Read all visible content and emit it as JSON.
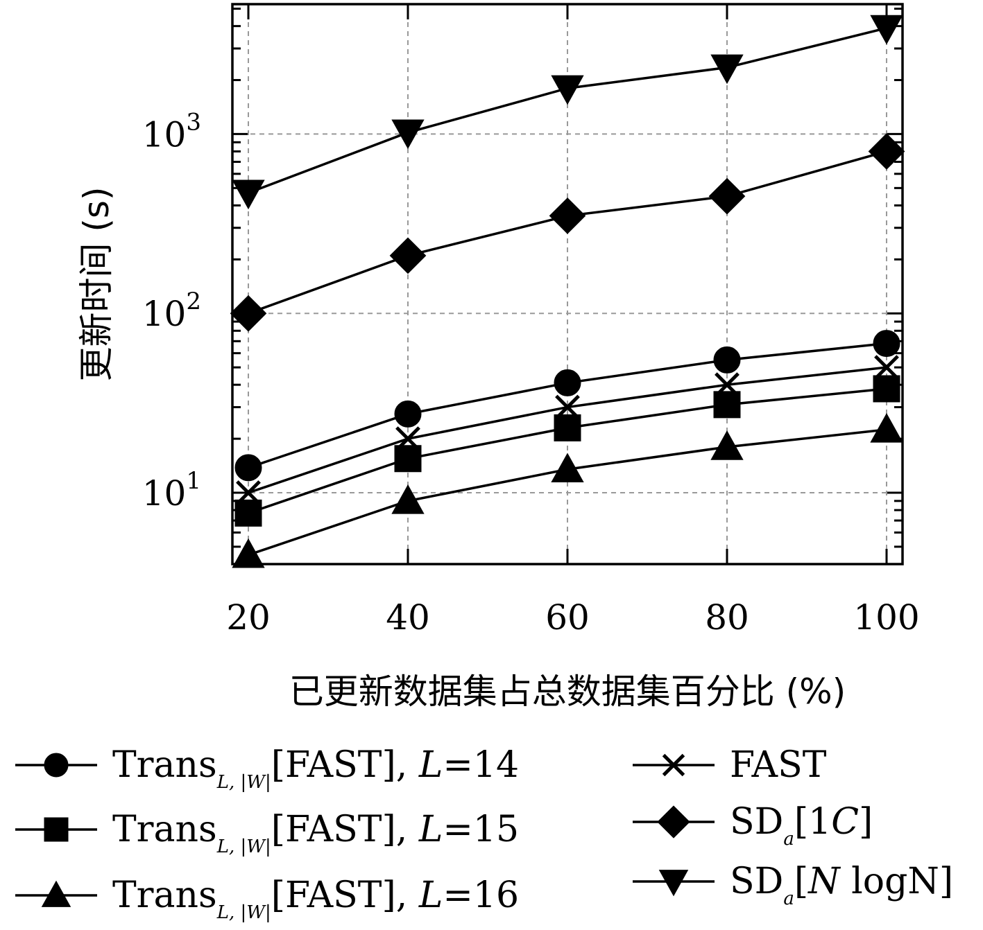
{
  "chart_data": {
    "type": "line",
    "title": "",
    "xlabel": "已更新数据集占总数据集百分比 (%)",
    "ylabel": "更新时间 (s)",
    "yscale": "log",
    "x": [
      20,
      40,
      60,
      80,
      100
    ],
    "xlim": [
      18,
      102
    ],
    "ylim": [
      4,
      5300
    ],
    "xticks": [
      "20",
      "40",
      "60",
      "80",
      "100"
    ],
    "yticks": [
      {
        "value": 10,
        "base": "10",
        "exp": "1"
      },
      {
        "value": 100,
        "base": "10",
        "exp": "2"
      },
      {
        "value": 1000,
        "base": "10",
        "exp": "3"
      }
    ],
    "grid": true,
    "legend_position": "below",
    "series": [
      {
        "key": "trans-l14",
        "marker": "circle",
        "label_main": "Trans",
        "label_sub": "L, |W|",
        "label_rest": "[FAST], ",
        "label_ital": "L",
        "label_tail": "=14",
        "values": [
          13.8,
          27.5,
          41,
          55,
          68
        ]
      },
      {
        "key": "trans-l15",
        "marker": "square",
        "label_main": "Trans",
        "label_sub": "L, |W|",
        "label_rest": "[FAST], ",
        "label_ital": "L",
        "label_tail": "=15",
        "values": [
          7.7,
          15.5,
          23,
          31,
          38
        ]
      },
      {
        "key": "trans-l16",
        "marker": "triangle-up",
        "label_main": "Trans",
        "label_sub": "L, |W|",
        "label_rest": "[FAST], ",
        "label_ital": "L",
        "label_tail": "=16",
        "values": [
          4.5,
          9,
          13.5,
          18,
          22.5
        ]
      },
      {
        "key": "fast",
        "marker": "x",
        "label_main": "FAST",
        "label_sub": "",
        "label_rest": "",
        "label_ital": "",
        "label_tail": "",
        "values": [
          10,
          20,
          30,
          40,
          50
        ]
      },
      {
        "key": "sd-1c",
        "marker": "diamond",
        "label_main": "SD",
        "label_sub": "a",
        "label_rest": "[1",
        "label_ital": "C",
        "label_tail": "]",
        "values": [
          100,
          210,
          350,
          450,
          800
        ]
      },
      {
        "key": "sd-nlogn",
        "marker": "triangle-down",
        "label_main": "SD",
        "label_sub": "a",
        "label_rest": "[",
        "label_ital": "N",
        "label_tail": " logN]",
        "values": [
          470,
          1020,
          1800,
          2350,
          3900
        ]
      }
    ]
  }
}
